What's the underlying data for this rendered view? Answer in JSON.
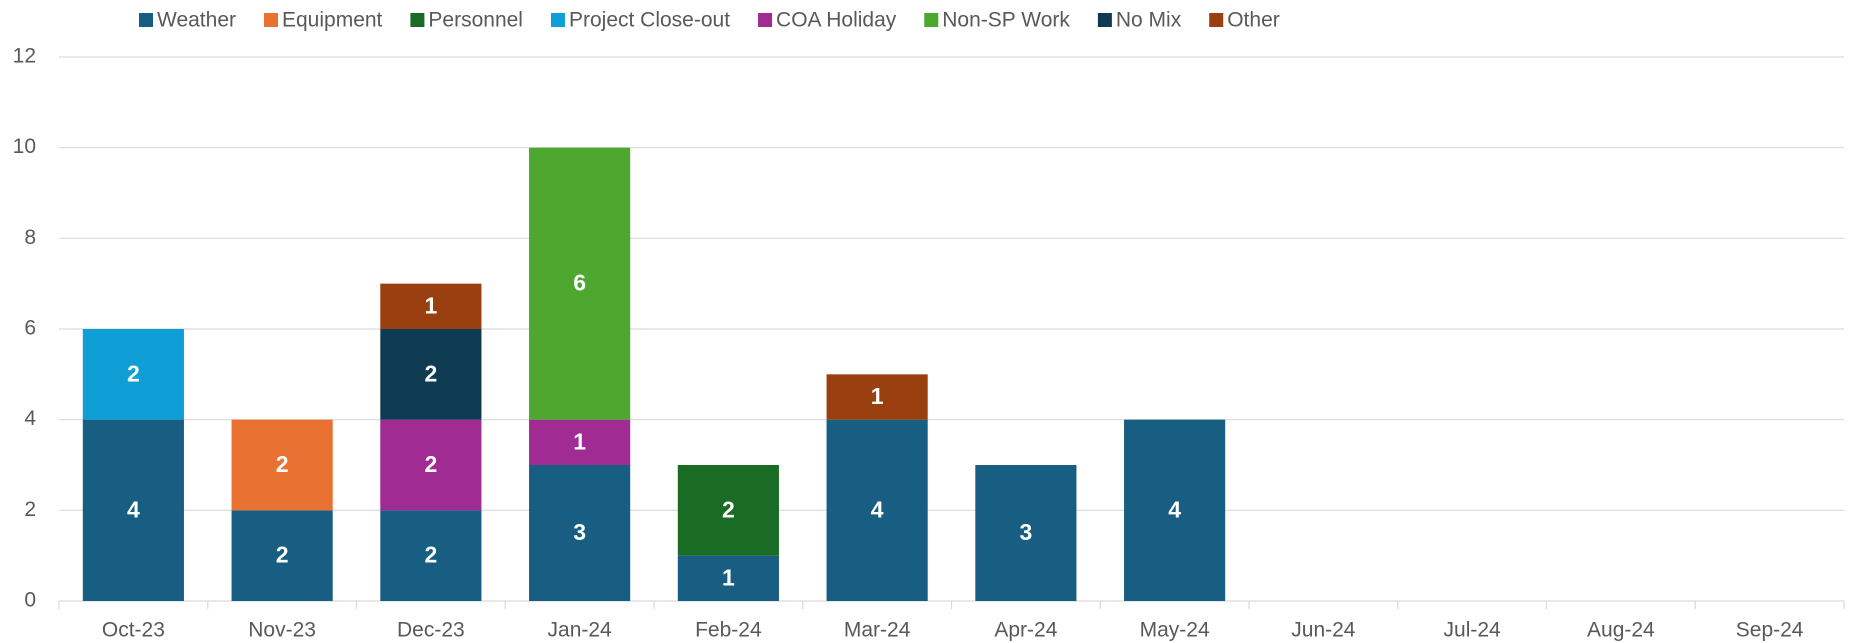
{
  "chart_data": {
    "type": "stacked_bar",
    "categories": [
      "Oct-23",
      "Nov-23",
      "Dec-23",
      "Jan-24",
      "Feb-24",
      "Mar-24",
      "Apr-24",
      "May-24",
      "Jun-24",
      "Jul-24",
      "Aug-24",
      "Sep-24"
    ],
    "series": [
      {
        "name": "Weather",
        "color": "#175e82",
        "values": [
          4,
          2,
          2,
          3,
          1,
          4,
          3,
          4,
          null,
          null,
          null,
          null
        ]
      },
      {
        "name": "Equipment",
        "color": "#e97132",
        "values": [
          null,
          2,
          null,
          null,
          null,
          null,
          null,
          null,
          null,
          null,
          null,
          null
        ]
      },
      {
        "name": "Personnel",
        "color": "#1a6b24",
        "values": [
          null,
          null,
          null,
          null,
          2,
          null,
          null,
          null,
          null,
          null,
          null,
          null
        ]
      },
      {
        "name": "Project Close-out",
        "color": "#0f9ed5",
        "values": [
          2,
          null,
          null,
          null,
          null,
          null,
          null,
          null,
          null,
          null,
          null,
          null
        ]
      },
      {
        "name": "COA Holiday",
        "color": "#a02b93",
        "values": [
          null,
          null,
          2,
          1,
          null,
          null,
          null,
          null,
          null,
          null,
          null,
          null
        ]
      },
      {
        "name": "Non-SP Work",
        "color": "#4ea72e",
        "values": [
          null,
          null,
          null,
          6,
          null,
          null,
          null,
          null,
          null,
          null,
          null,
          null
        ]
      },
      {
        "name": "No Mix",
        "color": "#0e3a52",
        "values": [
          null,
          null,
          2,
          null,
          null,
          null,
          null,
          null,
          null,
          null,
          null,
          null
        ]
      },
      {
        "name": "Other",
        "color": "#9a3f0f",
        "values": [
          null,
          null,
          1,
          null,
          null,
          1,
          null,
          null,
          null,
          null,
          null,
          null
        ]
      }
    ],
    "ylim": [
      0,
      12
    ],
    "yticks": [
      0,
      2,
      4,
      6,
      8,
      10,
      12
    ],
    "grid": true,
    "legend": "top",
    "data_labels": true
  }
}
